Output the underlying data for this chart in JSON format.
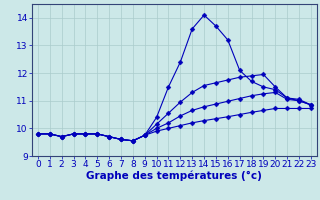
{
  "background_color": "#cce8e8",
  "grid_color": "#aacccc",
  "line_color": "#0000bb",
  "marker": "D",
  "marker_size": 2.5,
  "xlabel": "Graphe des températures (°c)",
  "xlabel_fontsize": 7.5,
  "tick_fontsize": 6.5,
  "xlim": [
    -0.5,
    23.5
  ],
  "ylim": [
    9.0,
    14.5
  ],
  "yticks": [
    9,
    10,
    11,
    12,
    13,
    14
  ],
  "xticks": [
    0,
    1,
    2,
    3,
    4,
    5,
    6,
    7,
    8,
    9,
    10,
    11,
    12,
    13,
    14,
    15,
    16,
    17,
    18,
    19,
    20,
    21,
    22,
    23
  ],
  "series": [
    [
      9.8,
      9.8,
      9.7,
      9.8,
      9.8,
      9.8,
      9.7,
      9.6,
      9.55,
      9.75,
      10.4,
      11.5,
      12.4,
      13.6,
      14.1,
      13.7,
      13.2,
      12.1,
      11.7,
      11.5,
      11.4,
      11.1,
      11.0,
      10.85
    ],
    [
      9.8,
      9.8,
      9.7,
      9.8,
      9.8,
      9.8,
      9.7,
      9.6,
      9.55,
      9.75,
      10.15,
      10.55,
      10.95,
      11.3,
      11.55,
      11.65,
      11.75,
      11.85,
      11.9,
      11.95,
      11.5,
      11.1,
      11.05,
      10.85
    ],
    [
      9.8,
      9.8,
      9.7,
      9.8,
      9.8,
      9.8,
      9.7,
      9.6,
      9.55,
      9.75,
      10.0,
      10.2,
      10.45,
      10.65,
      10.78,
      10.88,
      10.98,
      11.08,
      11.18,
      11.25,
      11.3,
      11.05,
      11.0,
      10.85
    ],
    [
      9.8,
      9.8,
      9.7,
      9.8,
      9.8,
      9.8,
      9.7,
      9.6,
      9.55,
      9.75,
      9.9,
      10.0,
      10.1,
      10.2,
      10.28,
      10.35,
      10.42,
      10.5,
      10.58,
      10.65,
      10.72,
      10.72,
      10.72,
      10.72
    ]
  ]
}
